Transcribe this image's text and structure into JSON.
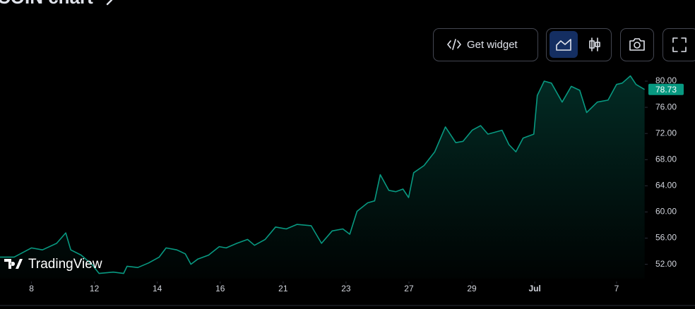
{
  "title": "COIN chart",
  "toolbar": {
    "get_widget": "Get widget"
  },
  "watermark": "TradingView",
  "chart_data": {
    "type": "area",
    "color": "#089981",
    "x": [
      -1.0,
      -0.55,
      0.0,
      0.35,
      0.8,
      1.09,
      1.25,
      1.58,
      1.92,
      2.15,
      2.6,
      2.93,
      3.04,
      3.38,
      3.72,
      4.06,
      4.28,
      4.62,
      4.89,
      5.07,
      5.29,
      5.63,
      5.97,
      6.19,
      6.53,
      6.87,
      7.09,
      7.43,
      7.76,
      8.1,
      8.44,
      8.89,
      9.22,
      9.56,
      9.9,
      10.12,
      10.35,
      10.69,
      10.91,
      11.09,
      11.36,
      11.58,
      11.81,
      11.99,
      12.15,
      12.48,
      12.82,
      13.16,
      13.49,
      13.72,
      14.01,
      14.28,
      14.51,
      14.96,
      15.18,
      15.4,
      15.63,
      15.97,
      16.08,
      16.3,
      16.53,
      16.87,
      17.16,
      17.43,
      17.65,
      17.99,
      18.33,
      18.6,
      18.78,
      19.04,
      19.22,
      19.49
    ],
    "values": [
      53.1,
      53.1,
      54.5,
      54.2,
      55.2,
      56.8,
      54.2,
      53.4,
      52.0,
      50.6,
      50.8,
      50.6,
      51.7,
      51.5,
      52.2,
      53.1,
      54.5,
      54.2,
      53.6,
      52.0,
      52.8,
      53.4,
      54.7,
      54.5,
      55.2,
      55.8,
      54.9,
      55.8,
      57.7,
      57.4,
      58.1,
      57.9,
      55.2,
      57.1,
      57.4,
      56.6,
      60.1,
      61.4,
      61.7,
      65.7,
      63.3,
      63.1,
      63.5,
      62.2,
      66.0,
      67.1,
      69.2,
      73.0,
      70.6,
      70.8,
      72.5,
      73.2,
      71.9,
      72.5,
      70.3,
      69.2,
      71.3,
      71.9,
      77.8,
      80.0,
      79.7,
      76.8,
      79.2,
      78.6,
      75.2,
      76.8,
      77.1,
      79.5,
      79.7,
      80.8,
      79.5,
      78.73
    ],
    "last_value": 78.73,
    "xlim": [
      -1.0,
      19.5
    ],
    "xticks": [
      {
        "value": 0,
        "label": "8"
      },
      {
        "value": 2,
        "label": "12"
      },
      {
        "value": 4,
        "label": "14"
      },
      {
        "value": 6,
        "label": "16"
      },
      {
        "value": 8,
        "label": "21"
      },
      {
        "value": 10,
        "label": "23"
      },
      {
        "value": 12,
        "label": "27"
      },
      {
        "value": 14,
        "label": "29"
      },
      {
        "value": 16,
        "label": "Jul"
      },
      {
        "value": 18.6,
        "label": "7"
      }
    ],
    "ylim": [
      49.8,
      82.7
    ],
    "yticks": [
      {
        "value": 52,
        "label": "52.00"
      },
      {
        "value": 56,
        "label": "56.00"
      },
      {
        "value": 60,
        "label": "60.00"
      },
      {
        "value": 64,
        "label": "64.00"
      },
      {
        "value": 68,
        "label": "68.00"
      },
      {
        "value": 72,
        "label": "72.00"
      },
      {
        "value": 76,
        "label": "76.00"
      },
      {
        "value": 80,
        "label": "80.00"
      }
    ]
  }
}
